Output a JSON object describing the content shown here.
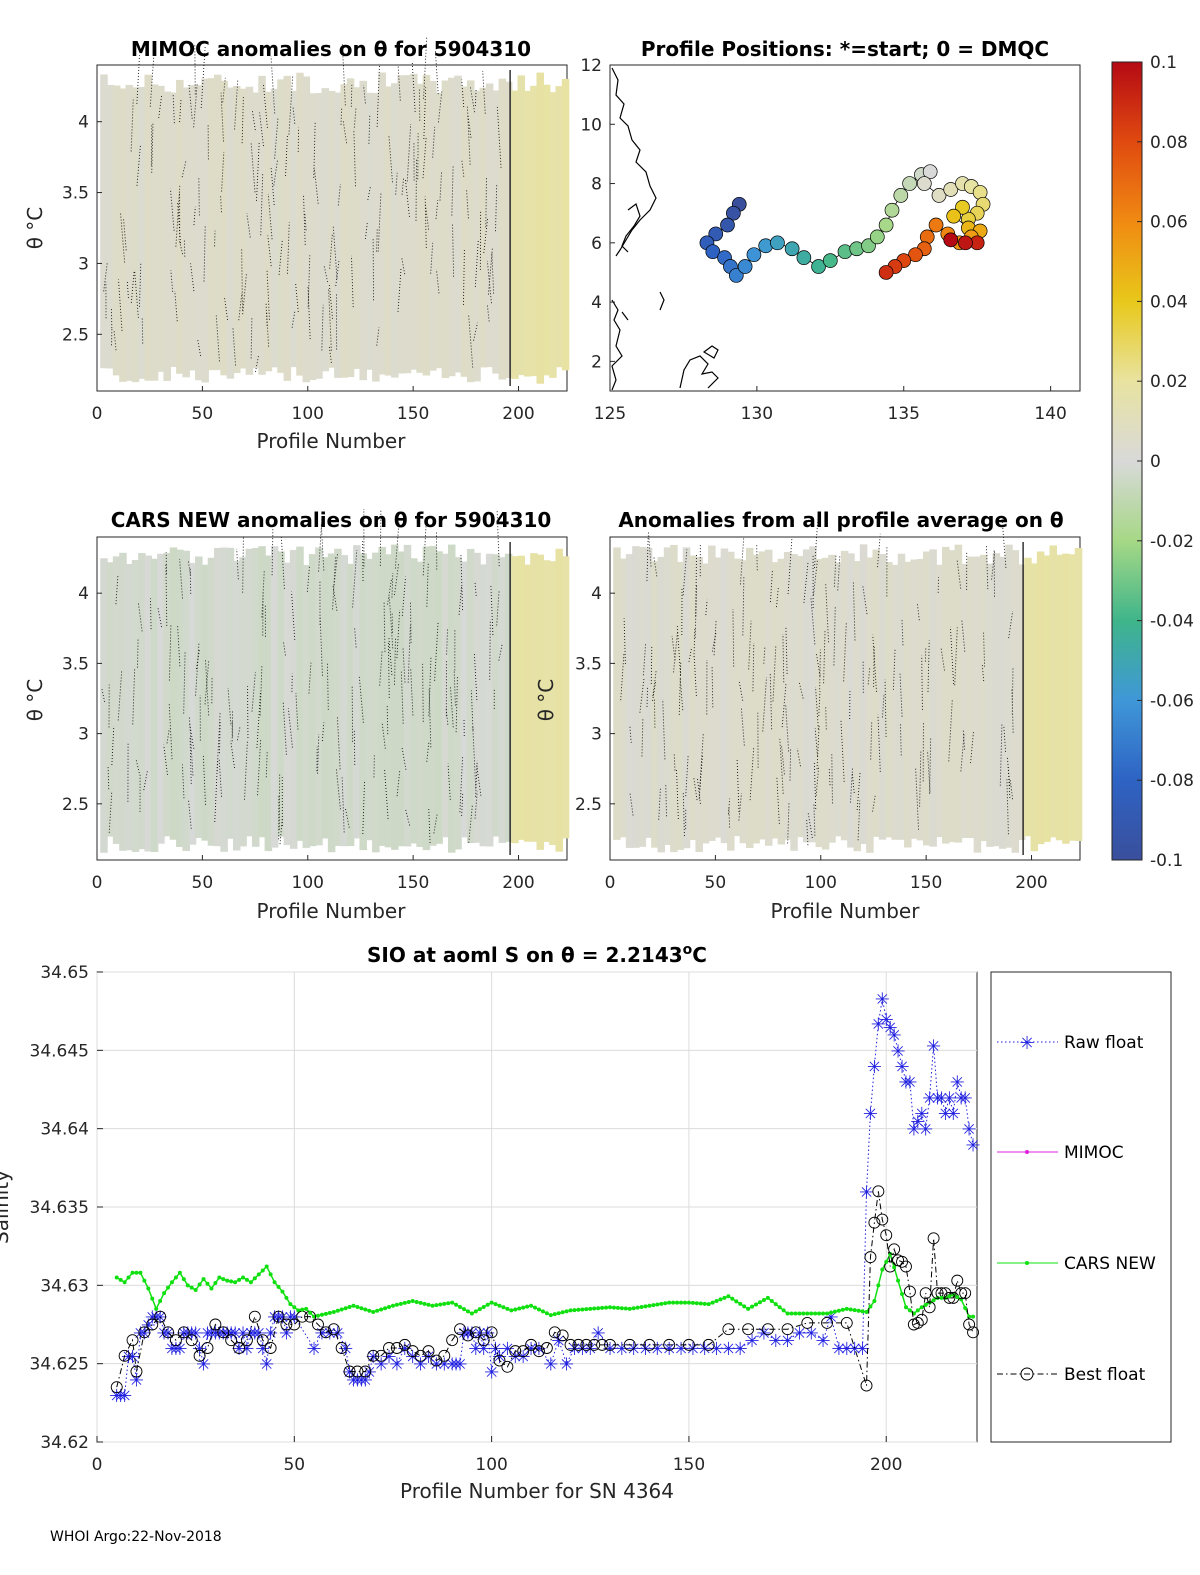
{
  "footer": "WHOI Argo:22-Nov-2018",
  "panels": {
    "mimoc": {
      "title": "MIMOC anomalies on θ  for 5904310",
      "xlabel": "Profile Number",
      "ylabel": "θ °C",
      "xticks": [
        "0",
        "50",
        "100",
        "150",
        "200"
      ],
      "yticks": [
        "2.5",
        "3",
        "3.5",
        "4"
      ]
    },
    "positions": {
      "title": "Profile Positions: *=start; 0 = DMQC",
      "xticks": [
        "125",
        "130",
        "135",
        "140"
      ],
      "yticks": [
        "2",
        "4",
        "6",
        "8",
        "10",
        "12"
      ]
    },
    "cars": {
      "title": "CARS NEW anomalies on θ for 5904310",
      "xlabel": "Profile Number",
      "ylabel": "θ °C",
      "xticks": [
        "0",
        "50",
        "100",
        "150",
        "200"
      ],
      "yticks": [
        "2.5",
        "3",
        "3.5",
        "4"
      ]
    },
    "avg": {
      "title": "Anomalies from all profile average on θ",
      "xlabel": "Profile Number",
      "ylabel": "θ °C",
      "xticks": [
        "0",
        "50",
        "100",
        "150",
        "200"
      ],
      "yticks": [
        "2.5",
        "3",
        "3.5",
        "4"
      ]
    }
  },
  "colorbar": {
    "ticks": [
      "0.1",
      "0.08",
      "0.06",
      "0.04",
      "0.02",
      "0",
      "-0.02",
      "-0.04",
      "-0.06",
      "-0.08",
      "-0.1"
    ]
  },
  "chart_data": [
    {
      "type": "heatmap",
      "title": "MIMOC anomalies on θ  for 5904310",
      "xlabel": "Profile Number",
      "ylabel": "θ °C",
      "xlim": [
        0,
        223
      ],
      "ylim": [
        2.1,
        4.4
      ],
      "anomaly_low_range": [
        0,
        196
      ],
      "anomaly_high_range": [
        196,
        222
      ],
      "low_value": 0.005,
      "high_value": 0.018
    },
    {
      "type": "scatter",
      "title": "Profile Positions: *=start; 0 = DMQC",
      "xlim": [
        125,
        141
      ],
      "ylim": [
        1,
        12
      ],
      "track": [
        [
          129.4,
          7.3
        ],
        [
          129.2,
          7.0
        ],
        [
          129.0,
          6.6
        ],
        [
          128.6,
          6.3
        ],
        [
          128.3,
          6.0
        ],
        [
          128.5,
          5.7
        ],
        [
          128.9,
          5.5
        ],
        [
          129.1,
          5.2
        ],
        [
          129.3,
          4.9
        ],
        [
          129.6,
          5.2
        ],
        [
          129.9,
          5.6
        ],
        [
          130.3,
          5.9
        ],
        [
          130.7,
          6.0
        ],
        [
          131.2,
          5.8
        ],
        [
          131.6,
          5.5
        ],
        [
          132.1,
          5.2
        ],
        [
          132.5,
          5.4
        ],
        [
          133.0,
          5.7
        ],
        [
          133.4,
          5.8
        ],
        [
          133.8,
          5.9
        ],
        [
          134.1,
          6.2
        ],
        [
          134.4,
          6.6
        ],
        [
          134.6,
          7.1
        ],
        [
          134.9,
          7.6
        ],
        [
          135.2,
          8.0
        ],
        [
          135.6,
          8.3
        ],
        [
          135.9,
          8.4
        ],
        [
          135.7,
          8.0
        ],
        [
          136.2,
          7.6
        ],
        [
          136.6,
          7.8
        ],
        [
          137.0,
          8.0
        ],
        [
          137.3,
          7.9
        ],
        [
          137.6,
          7.7
        ],
        [
          137.7,
          7.3
        ],
        [
          137.5,
          7.0
        ],
        [
          137.2,
          6.8
        ],
        [
          137.0,
          7.2
        ],
        [
          136.7,
          6.9
        ],
        [
          137.2,
          6.5
        ],
        [
          137.6,
          6.4
        ],
        [
          137.3,
          6.2
        ],
        [
          136.9,
          6.0
        ],
        [
          136.5,
          6.3
        ],
        [
          136.1,
          6.6
        ],
        [
          135.8,
          6.2
        ],
        [
          135.7,
          5.8
        ],
        [
          135.4,
          5.6
        ],
        [
          135.0,
          5.4
        ],
        [
          134.7,
          5.2
        ],
        [
          134.4,
          5.0
        ],
        [
          137.5,
          6.0
        ],
        [
          137.1,
          6.0
        ],
        [
          136.6,
          6.1
        ]
      ],
      "start_marker": [
        129.5,
        7.0
      ],
      "marker_size": 7
    },
    {
      "type": "heatmap",
      "title": "CARS NEW anomalies on θ for 5904310",
      "xlabel": "Profile Number",
      "ylabel": "θ °C",
      "xlim": [
        0,
        223
      ],
      "ylim": [
        2.1,
        4.4
      ],
      "low_value": -0.003,
      "high_value": 0.018
    },
    {
      "type": "heatmap",
      "title": "Anomalies from all profile average on θ",
      "xlabel": "Profile Number",
      "ylabel": "θ °C",
      "xlim": [
        0,
        223
      ],
      "ylim": [
        2.1,
        4.4
      ],
      "low_value": 0.004,
      "high_value": 0.018
    },
    {
      "type": "line",
      "title": "SIO at aoml S on θ = 2.2143°C",
      "title_prefix": "SIO at aoml S on θ = 2.2143",
      "title_sup": "o",
      "title_suffix": "C",
      "xlabel": "Profile Number for SN 4364",
      "ylabel": "Salinity",
      "ylabel_visible": "Salinity",
      "xlim": [
        0,
        223
      ],
      "ylim": [
        34.62,
        34.65
      ],
      "xticks": [
        0,
        50,
        100,
        150,
        200
      ],
      "yticks": [
        34.62,
        34.625,
        34.63,
        34.635,
        34.64,
        34.645,
        34.65
      ],
      "ytick_labels": [
        "34.62",
        "34.625",
        "34.63",
        "34.635",
        "34.64",
        "34.645",
        "34.65"
      ],
      "legend": [
        "Raw float",
        "MIMOC",
        "CARS NEW",
        "Best float"
      ],
      "series": [
        {
          "name": "Raw float",
          "color": "#1f1fe0",
          "x": [
            5,
            6,
            7,
            8,
            9,
            10,
            11,
            12,
            13,
            14,
            15,
            16,
            17,
            18,
            19,
            20,
            21,
            22,
            23,
            24,
            25,
            26,
            27,
            28,
            29,
            30,
            31,
            32,
            33,
            34,
            35,
            36,
            37,
            38,
            39,
            40,
            41,
            42,
            43,
            44,
            45,
            46,
            47,
            48,
            49,
            50,
            55,
            57,
            59,
            61,
            63,
            64,
            65,
            66,
            67,
            68,
            69,
            70,
            72,
            74,
            76,
            78,
            80,
            82,
            84,
            86,
            88,
            90,
            91,
            92,
            93,
            94,
            95,
            96,
            97,
            98,
            99,
            100,
            101,
            102,
            104,
            106,
            108,
            110,
            112,
            115,
            117,
            119,
            121,
            123,
            125,
            127,
            130,
            133,
            136,
            139,
            142,
            145,
            148,
            151,
            154,
            157,
            160,
            163,
            166,
            169,
            172,
            175,
            178,
            181,
            184,
            186,
            188,
            190,
            192,
            194,
            195,
            196,
            197,
            198,
            199,
            200,
            201,
            202,
            203,
            204,
            205,
            206,
            207,
            208,
            209,
            210,
            211,
            212,
            213,
            214,
            215,
            216,
            217,
            218,
            219,
            220,
            221,
            222
          ],
          "values": [
            34.623,
            34.623,
            34.623,
            34.6255,
            34.6255,
            34.624,
            34.627,
            34.627,
            34.6275,
            34.628,
            34.628,
            34.628,
            34.627,
            34.627,
            34.626,
            34.626,
            34.626,
            34.627,
            34.627,
            34.627,
            34.627,
            34.626,
            34.625,
            34.627,
            34.627,
            34.627,
            34.627,
            34.627,
            34.627,
            34.627,
            34.627,
            34.626,
            34.627,
            34.626,
            34.627,
            34.627,
            34.627,
            34.626,
            34.625,
            34.627,
            34.628,
            34.628,
            34.628,
            34.627,
            34.628,
            34.628,
            34.626,
            34.627,
            34.627,
            34.627,
            34.626,
            34.6245,
            34.624,
            34.624,
            34.624,
            34.624,
            34.6245,
            34.6255,
            34.625,
            34.6255,
            34.625,
            34.626,
            34.6255,
            34.625,
            34.6255,
            34.625,
            34.625,
            34.625,
            34.625,
            34.625,
            34.627,
            34.627,
            34.627,
            34.626,
            34.627,
            34.626,
            34.627,
            34.6245,
            34.626,
            34.6255,
            34.626,
            34.6255,
            34.6255,
            34.626,
            34.626,
            34.625,
            34.6265,
            34.625,
            34.626,
            34.626,
            34.626,
            34.627,
            34.626,
            34.626,
            34.626,
            34.626,
            34.626,
            34.626,
            34.626,
            34.626,
            34.626,
            34.626,
            34.626,
            34.626,
            34.6265,
            34.627,
            34.6265,
            34.6265,
            34.627,
            34.627,
            34.6265,
            34.628,
            34.626,
            34.626,
            34.626,
            34.626,
            34.636,
            34.641,
            34.644,
            34.6467,
            34.6483,
            34.647,
            34.6465,
            34.646,
            34.645,
            34.644,
            34.643,
            34.643,
            34.64,
            34.6405,
            34.641,
            34.64,
            34.642,
            34.6453,
            34.642,
            34.642,
            34.641,
            34.642,
            34.641,
            34.643,
            34.642,
            34.642,
            34.64,
            34.639
          ]
        },
        {
          "name": "MIMOC",
          "color": "#e020e0",
          "x": [],
          "values": []
        },
        {
          "name": "CARS NEW",
          "color": "#10e010",
          "x": [
            5,
            7,
            9,
            11,
            13,
            15,
            17,
            19,
            21,
            23,
            25,
            27,
            29,
            31,
            33,
            35,
            37,
            39,
            41,
            43,
            45,
            47,
            49,
            51,
            53,
            55,
            60,
            65,
            70,
            75,
            80,
            85,
            90,
            95,
            100,
            105,
            110,
            115,
            120,
            125,
            130,
            135,
            140,
            145,
            150,
            155,
            160,
            165,
            170,
            175,
            180,
            185,
            190,
            195,
            197,
            199,
            201,
            203,
            205,
            207,
            209,
            211,
            213,
            215,
            217,
            219,
            221,
            222
          ],
          "values": [
            34.6305,
            34.6302,
            34.6308,
            34.6308,
            34.6298,
            34.6285,
            34.6295,
            34.6302,
            34.6308,
            34.63,
            34.6297,
            34.6304,
            34.6298,
            34.6305,
            34.6303,
            34.6302,
            34.6305,
            34.6302,
            34.6307,
            34.6312,
            34.6302,
            34.6296,
            34.6288,
            34.6284,
            34.6285,
            34.628,
            34.6283,
            34.6287,
            34.6283,
            34.6287,
            34.629,
            34.6287,
            34.6289,
            34.6282,
            34.6289,
            34.6284,
            34.6287,
            34.6281,
            34.6284,
            34.6285,
            34.6286,
            34.6285,
            34.6287,
            34.6289,
            34.6289,
            34.6288,
            34.6293,
            34.6285,
            34.6292,
            34.6282,
            34.6282,
            34.6282,
            34.6285,
            34.6283,
            34.629,
            34.631,
            34.632,
            34.6303,
            34.6286,
            34.6282,
            34.6286,
            34.6289,
            34.6292,
            34.6292,
            34.6294,
            34.6291,
            34.628,
            34.628
          ]
        },
        {
          "name": "Best float",
          "color": "#000000",
          "x": [
            5,
            7,
            9,
            10,
            12,
            14,
            16,
            18,
            20,
            22,
            24,
            26,
            28,
            30,
            32,
            34,
            36,
            38,
            40,
            42,
            44,
            46,
            48,
            50,
            52,
            54,
            56,
            58,
            60,
            62,
            64,
            66,
            68,
            70,
            72,
            74,
            76,
            78,
            80,
            82,
            84,
            86,
            88,
            90,
            92,
            94,
            96,
            98,
            100,
            102,
            104,
            106,
            108,
            110,
            112,
            114,
            116,
            118,
            120,
            122,
            124,
            126,
            128,
            130,
            135,
            140,
            145,
            150,
            155,
            160,
            165,
            170,
            175,
            180,
            185,
            190,
            195,
            196,
            197,
            198,
            199,
            200,
            201,
            202,
            203,
            204,
            205,
            206,
            207,
            208,
            209,
            210,
            211,
            212,
            213,
            214,
            215,
            216,
            217,
            218,
            219,
            220,
            221,
            222
          ],
          "values": [
            34.6235,
            34.6255,
            34.6265,
            34.6245,
            34.627,
            34.6275,
            34.628,
            34.627,
            34.6265,
            34.627,
            34.6265,
            34.6255,
            34.626,
            34.6275,
            34.627,
            34.6265,
            34.626,
            34.6265,
            34.628,
            34.6265,
            34.626,
            34.628,
            34.6275,
            34.6275,
            34.628,
            34.628,
            34.6275,
            34.627,
            34.6272,
            34.626,
            34.6245,
            34.6245,
            34.6245,
            34.6255,
            34.6255,
            34.626,
            34.626,
            34.6262,
            34.6258,
            34.6255,
            34.6258,
            34.6252,
            34.6255,
            34.6265,
            34.6272,
            34.6268,
            34.627,
            34.6265,
            34.627,
            34.6252,
            34.6248,
            34.6258,
            34.6258,
            34.6262,
            34.6258,
            34.626,
            34.627,
            34.6268,
            34.6262,
            34.6262,
            34.6262,
            34.6262,
            34.6262,
            34.6262,
            34.6262,
            34.6262,
            34.6262,
            34.6262,
            34.6262,
            34.6272,
            34.6272,
            34.6272,
            34.6272,
            34.6276,
            34.6276,
            34.6276,
            34.6236,
            34.6318,
            34.634,
            34.636,
            34.6342,
            34.6332,
            34.6312,
            34.6323,
            34.6316,
            34.6315,
            34.6312,
            34.6296,
            34.6275,
            34.6276,
            34.6278,
            34.6295,
            34.6286,
            34.633,
            34.6295,
            34.6295,
            34.6295,
            34.6292,
            34.6292,
            34.6303,
            34.6295,
            34.6295,
            34.6275,
            34.627
          ]
        }
      ]
    }
  ]
}
